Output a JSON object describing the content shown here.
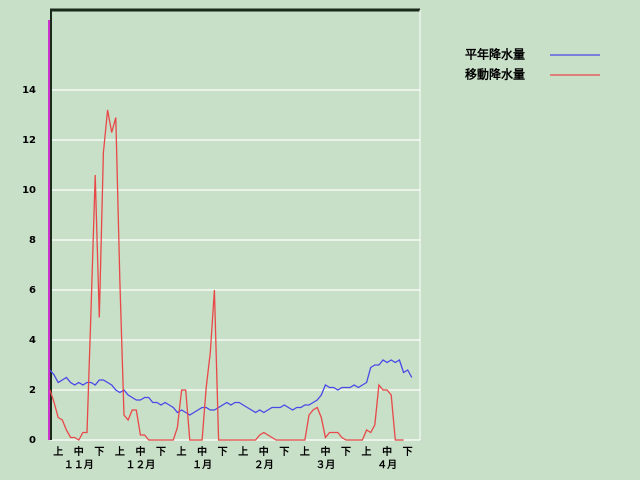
{
  "chart_data": {
    "type": "line",
    "categories": [
      null,
      null,
      "上",
      null,
      null,
      null,
      null,
      "中",
      null,
      null,
      null,
      null,
      "下",
      null,
      null,
      null,
      null,
      "上",
      null,
      null,
      null,
      null,
      "中",
      null,
      null,
      null,
      null,
      "下",
      null,
      null,
      null,
      null,
      "上",
      null,
      null,
      null,
      null,
      "中",
      null,
      null,
      null,
      null,
      "下",
      null,
      null,
      null,
      null,
      "上",
      null,
      null,
      null,
      null,
      "中",
      null,
      null,
      null,
      null,
      "下",
      null,
      null,
      null,
      null,
      "上",
      null,
      null,
      null,
      null,
      "中",
      null,
      null,
      null,
      null,
      "下",
      null,
      null,
      null,
      null,
      "上",
      null,
      null,
      null,
      null,
      "中",
      null,
      null,
      null,
      null,
      "下",
      null,
      null
    ],
    "month_labels": [
      null,
      null,
      null,
      null,
      null,
      null,
      null,
      "１１月",
      null,
      null,
      null,
      null,
      null,
      null,
      null,
      null,
      null,
      null,
      null,
      null,
      null,
      null,
      "１２月",
      null,
      null,
      null,
      null,
      null,
      null,
      null,
      null,
      null,
      null,
      null,
      null,
      null,
      null,
      "１月",
      null,
      null,
      null,
      null,
      null,
      null,
      null,
      null,
      null,
      null,
      null,
      null,
      null,
      null,
      "２月",
      null,
      null,
      null,
      null,
      null,
      null,
      null,
      null,
      null,
      null,
      null,
      null,
      null,
      null,
      "３月",
      null,
      null,
      null,
      null,
      null,
      null,
      null,
      null,
      null,
      null,
      null,
      null,
      null,
      null,
      "４月",
      null,
      null,
      null,
      null,
      null,
      null,
      null
    ],
    "series": [
      {
        "name": "平年降水量",
        "color": "#4848e8",
        "values": [
          2.8,
          2.6,
          2.3,
          2.4,
          2.5,
          2.3,
          2.2,
          2.3,
          2.2,
          2.3,
          2.3,
          2.2,
          2.4,
          2.4,
          2.3,
          2.2,
          2.0,
          1.9,
          2.0,
          1.8,
          1.7,
          1.6,
          1.6,
          1.7,
          1.7,
          1.5,
          1.5,
          1.4,
          1.5,
          1.4,
          1.3,
          1.1,
          1.2,
          1.1,
          1.0,
          1.1,
          1.2,
          1.3,
          1.3,
          1.2,
          1.2,
          1.3,
          1.4,
          1.5,
          1.4,
          1.5,
          1.5,
          1.4,
          1.3,
          1.2,
          1.1,
          1.2,
          1.1,
          1.2,
          1.3,
          1.3,
          1.3,
          1.4,
          1.3,
          1.2,
          1.3,
          1.3,
          1.4,
          1.4,
          1.5,
          1.6,
          1.8,
          2.2,
          2.1,
          2.1,
          2.0,
          2.1,
          2.1,
          2.1,
          2.2,
          2.1,
          2.2,
          2.3,
          2.9,
          3.0,
          3.0,
          3.2,
          3.1,
          3.2,
          3.1,
          3.2,
          2.7,
          2.8,
          2.5,
          null
        ]
      },
      {
        "name": "移動降水量",
        "color": "#e84848",
        "values": [
          2.0,
          1.5,
          0.9,
          0.8,
          0.4,
          0.1,
          0.1,
          0,
          0.3,
          0.3,
          5.3,
          10.6,
          4.9,
          11.5,
          13.2,
          12.3,
          12.9,
          6.3,
          1.0,
          0.8,
          1.2,
          1.2,
          0.2,
          0.2,
          0,
          0,
          0,
          0,
          0,
          0,
          0,
          0.5,
          2.0,
          2.0,
          0,
          0,
          0,
          0,
          2.1,
          3.5,
          6.0,
          0,
          0,
          0,
          0,
          0,
          0,
          0,
          0,
          0,
          0,
          0.2,
          0.3,
          0.2,
          0.1,
          0,
          0,
          0,
          0,
          0,
          0,
          0,
          0,
          1.0,
          1.2,
          1.3,
          0.9,
          0.1,
          0.3,
          0.3,
          0.3,
          0.1,
          0,
          0,
          0,
          0,
          0,
          0.4,
          0.3,
          0.6,
          2.2,
          2.0,
          2.0,
          1.8,
          0,
          0,
          0,
          null,
          null,
          null
        ]
      }
    ],
    "ylim": [
      0,
      17.2
    ],
    "yticks": [
      0,
      2,
      4,
      6,
      8,
      10,
      12,
      14
    ],
    "grid": true
  }
}
